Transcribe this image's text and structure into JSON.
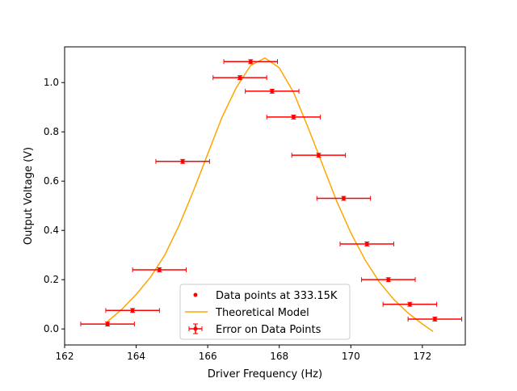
{
  "chart_data": {
    "type": "scatter",
    "xlabel": "Driver Frequency (Hz)",
    "ylabel": "Output Voltage (V)",
    "xlim": [
      162.0,
      173.2
    ],
    "ylim": [
      -0.065,
      1.145
    ],
    "x_ticks": [
      162,
      164,
      166,
      168,
      170,
      172
    ],
    "x_tick_labels": [
      "162",
      "164",
      "166",
      "168",
      "170",
      "172"
    ],
    "y_ticks": [
      0.0,
      0.2,
      0.4,
      0.6,
      0.8,
      1.0
    ],
    "y_tick_labels": [
      "0.0",
      "0.2",
      "0.4",
      "0.6",
      "0.8",
      "1.0"
    ],
    "grid": false,
    "legend_position": "lower-center",
    "legend": [
      {
        "key": "points",
        "label": "Data points at 333.15K"
      },
      {
        "key": "model",
        "label": "Theoretical Model"
      },
      {
        "key": "errors",
        "label": "Error on Data Points"
      }
    ],
    "colors": {
      "points": "#ff0000",
      "errorbars": "#ff0000",
      "model": "#ffa500"
    },
    "series": [
      {
        "key": "points",
        "x": [
          163.2,
          163.9,
          164.65,
          165.3,
          166.9,
          167.2,
          167.8,
          168.4,
          169.1,
          169.8,
          170.45,
          171.05,
          171.65,
          172.35
        ],
        "y": [
          0.02,
          0.075,
          0.24,
          0.68,
          1.02,
          1.085,
          0.965,
          0.86,
          0.705,
          0.53,
          0.345,
          0.2,
          0.1,
          0.04
        ],
        "x_err": 0.75,
        "y_err": 0.008
      },
      {
        "key": "model",
        "x": [
          163.2,
          163.6,
          164.0,
          164.4,
          164.8,
          165.2,
          165.6,
          166.0,
          166.4,
          166.8,
          167.2,
          167.6,
          168.0,
          168.4,
          168.8,
          169.2,
          169.6,
          170.0,
          170.4,
          170.8,
          171.2,
          171.6,
          172.0,
          172.3
        ],
        "y": [
          0.03,
          0.08,
          0.14,
          0.21,
          0.3,
          0.42,
          0.56,
          0.71,
          0.86,
          0.98,
          1.07,
          1.1,
          1.06,
          0.96,
          0.82,
          0.67,
          0.52,
          0.39,
          0.28,
          0.19,
          0.12,
          0.065,
          0.02,
          -0.01
        ]
      }
    ]
  }
}
